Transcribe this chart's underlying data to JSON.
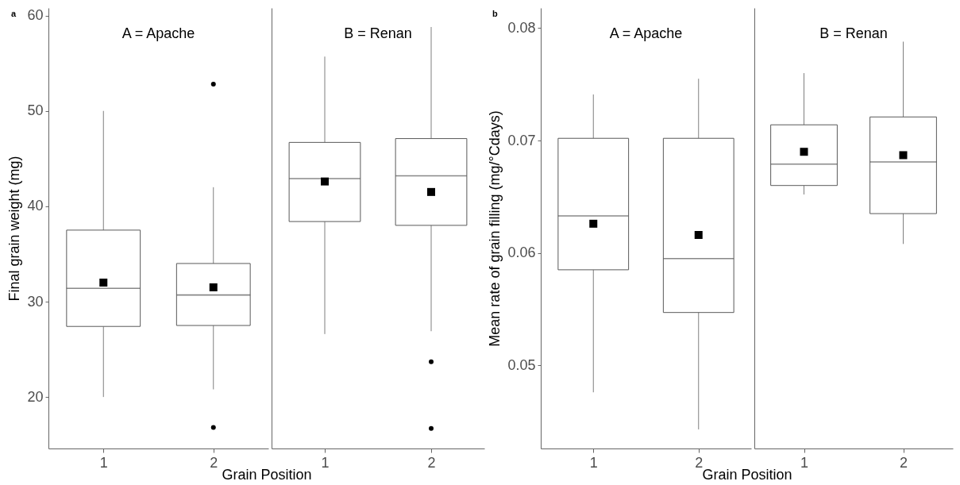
{
  "chart_data": [
    {
      "type": "box",
      "title": "A = Apache",
      "xlabel": "Grain Position",
      "ylabel": "Final grain weight (mg)",
      "annotations": [
        "a"
      ],
      "categories": [
        "1",
        "2"
      ],
      "ylim": [
        14.6,
        60.8
      ],
      "yticks": [
        20,
        30,
        40,
        50,
        60
      ],
      "boxes": [
        {
          "low": 20.0,
          "q1": 27.4,
          "median": 31.4,
          "q3": 37.5,
          "high": 50.0,
          "mean": 32.0
        },
        {
          "low": 20.8,
          "q1": 27.5,
          "median": 30.7,
          "q3": 34.0,
          "high": 42.0,
          "mean": 31.5,
          "outliers": [
            52.8,
            16.8
          ]
        }
      ]
    },
    {
      "type": "box",
      "title": "B = Renan",
      "categories": [
        "1",
        "2"
      ],
      "ylim": [
        14.6,
        60.8
      ],
      "yticks": [
        20,
        30,
        40,
        50,
        60
      ],
      "tick_labels": "x",
      "boxes": [
        {
          "low": 26.6,
          "q1": 38.4,
          "median": 42.9,
          "q3": 46.7,
          "high": 55.7,
          "mean": 42.6
        },
        {
          "low": 26.9,
          "q1": 38.0,
          "median": 43.2,
          "q3": 47.1,
          "high": 58.8,
          "mean": 41.5,
          "outliers": [
            23.7,
            16.7
          ]
        }
      ]
    },
    {
      "type": "box",
      "title": "A = Apache",
      "xlabel": "Grain Position",
      "ylabel": "Mean rate of grain filling (mg/°Cdays)",
      "annotations": [
        "b"
      ],
      "categories": [
        "1",
        "2"
      ],
      "ylim": [
        0.0426,
        0.0818
      ],
      "yticks": [
        0.05,
        0.06,
        0.07,
        0.08
      ],
      "boxes": [
        {
          "low": 0.0476,
          "q1": 0.0585,
          "median": 0.0633,
          "q3": 0.0702,
          "high": 0.0741,
          "mean": 0.0626
        },
        {
          "low": 0.0443,
          "q1": 0.0547,
          "median": 0.0595,
          "q3": 0.0702,
          "high": 0.0755,
          "mean": 0.0616
        }
      ]
    },
    {
      "type": "box",
      "title": "B = Renan",
      "categories": [
        "1",
        "2"
      ],
      "ylim": [
        0.0426,
        0.0818
      ],
      "yticks": [
        0.05,
        0.06,
        0.07,
        0.08
      ],
      "tick_labels": "x",
      "boxes": [
        {
          "low": 0.0652,
          "q1": 0.066,
          "median": 0.0679,
          "q3": 0.0714,
          "high": 0.076,
          "mean": 0.069
        },
        {
          "low": 0.0608,
          "q1": 0.0635,
          "median": 0.0681,
          "q3": 0.0721,
          "high": 0.0788,
          "mean": 0.0687
        }
      ]
    }
  ]
}
